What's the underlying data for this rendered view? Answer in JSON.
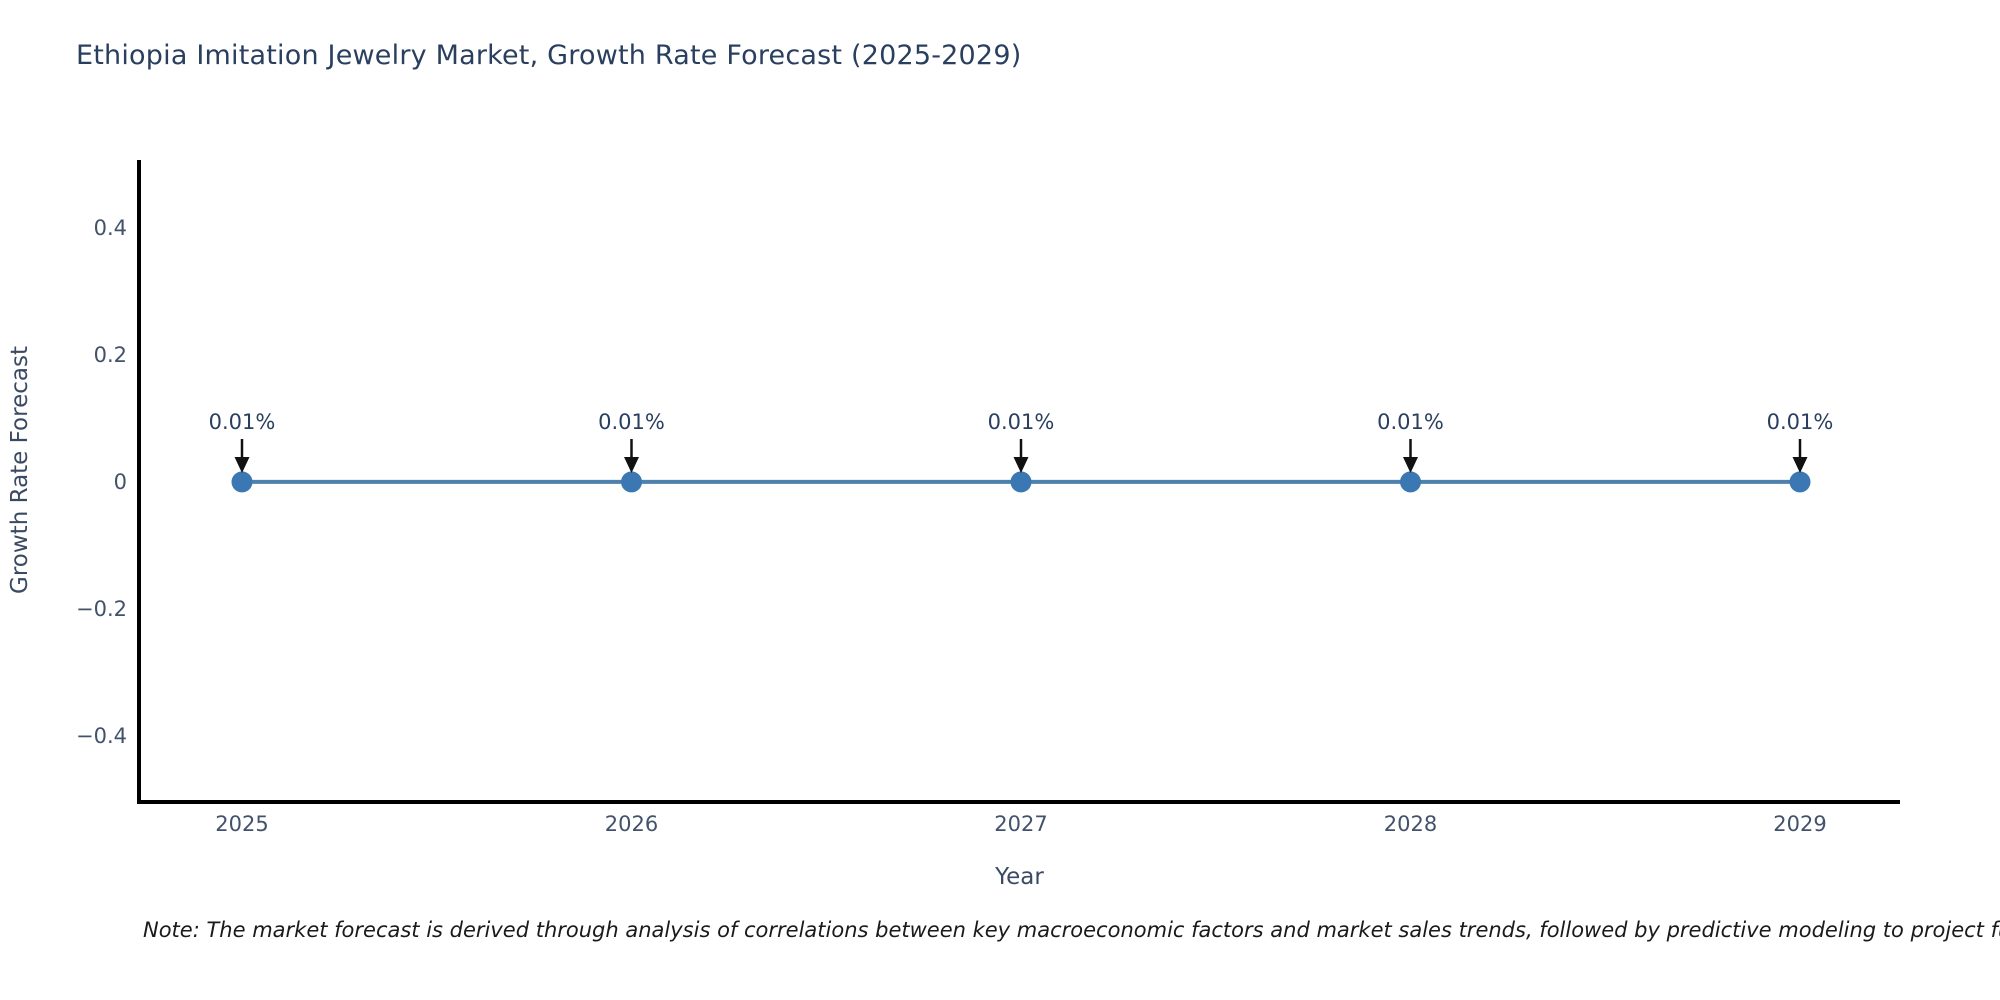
{
  "page": {
    "background": "#ffffff"
  },
  "header": {
    "title": "Ethiopia Imitation Jewelry Market, Growth Rate Forecast (2025-2029)"
  },
  "footnote": {
    "text": "Note: The market forecast is derived through analysis of correlations between key macroeconomic factors and market sales trends, followed by predictive modeling to project future sales."
  },
  "chart_data": {
    "type": "line",
    "title": "Ethiopia Imitation Jewelry Market, Growth Rate Forecast (2025-2029)",
    "xlabel": "Year",
    "ylabel": "Growth Rate Forecast",
    "categories": [
      "2025",
      "2026",
      "2027",
      "2028",
      "2029"
    ],
    "series": [
      {
        "name": "Growth Rate Forecast",
        "values": [
          0.0001,
          0.0001,
          0.0001,
          0.0001,
          0.0001
        ],
        "display_values": [
          "0.01%",
          "0.01%",
          "0.01%",
          "0.01%",
          "0.01%"
        ]
      }
    ],
    "yticks": [
      0.4,
      0.2,
      0,
      -0.2,
      -0.4
    ],
    "ytick_labels": [
      "0.4",
      "0.2",
      "0",
      "−0.2",
      "−0.4"
    ],
    "ylim": [
      -0.505,
      0.506
    ],
    "grid": false,
    "legend": "none",
    "annotation_arrows": "down",
    "colors": {
      "line": "#4e81ad",
      "marker": "#3b78b3",
      "axis": "#000000",
      "tick_text": "#42526b",
      "title_text": "#2a3f5f",
      "axis_label_text": "#3b4a63",
      "annotation_text": "#2a3f5f",
      "arrow": "#111111",
      "note_text": "#1a1a1a"
    }
  }
}
